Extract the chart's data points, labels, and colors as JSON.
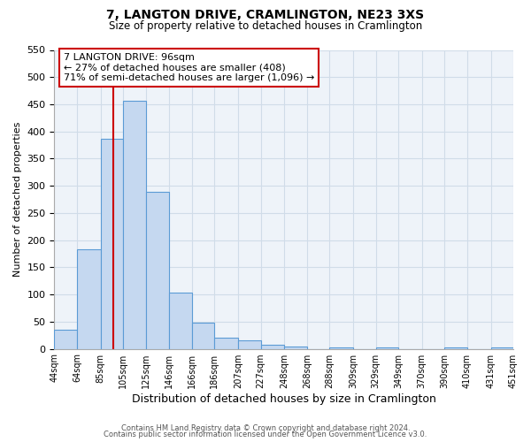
{
  "title": "7, LANGTON DRIVE, CRAMLINGTON, NE23 3XS",
  "subtitle": "Size of property relative to detached houses in Cramlington",
  "xlabel": "Distribution of detached houses by size in Cramlington",
  "ylabel": "Number of detached properties",
  "bar_values": [
    35,
    183,
    386,
    456,
    289,
    104,
    48,
    20,
    15,
    8,
    4,
    0,
    3,
    0,
    3,
    0,
    0,
    3,
    0,
    3
  ],
  "bin_edges": [
    44,
    64,
    85,
    105,
    125,
    146,
    166,
    186,
    207,
    227,
    248,
    268,
    288,
    309,
    329,
    349,
    370,
    390,
    410,
    431,
    451
  ],
  "tick_labels": [
    "44sqm",
    "64sqm",
    "85sqm",
    "105sqm",
    "125sqm",
    "146sqm",
    "166sqm",
    "186sqm",
    "207sqm",
    "227sqm",
    "248sqm",
    "268sqm",
    "288sqm",
    "309sqm",
    "329sqm",
    "349sqm",
    "370sqm",
    "390sqm",
    "410sqm",
    "431sqm",
    "451sqm"
  ],
  "bar_color": "#c5d8f0",
  "bar_edge_color": "#5b9bd5",
  "grid_color": "#d0dce8",
  "background_color": "#eef3f9",
  "vline_x": 96,
  "vline_color": "#cc0000",
  "ylim": [
    0,
    550
  ],
  "yticks": [
    0,
    50,
    100,
    150,
    200,
    250,
    300,
    350,
    400,
    450,
    500,
    550
  ],
  "annotation_title": "7 LANGTON DRIVE: 96sqm",
  "annotation_line1": "← 27% of detached houses are smaller (408)",
  "annotation_line2": "71% of semi-detached houses are larger (1,096) →",
  "annotation_box_color": "#ffffff",
  "annotation_box_edge": "#cc0000",
  "footer1": "Contains HM Land Registry data © Crown copyright and database right 2024.",
  "footer2": "Contains public sector information licensed under the Open Government Licence v3.0."
}
